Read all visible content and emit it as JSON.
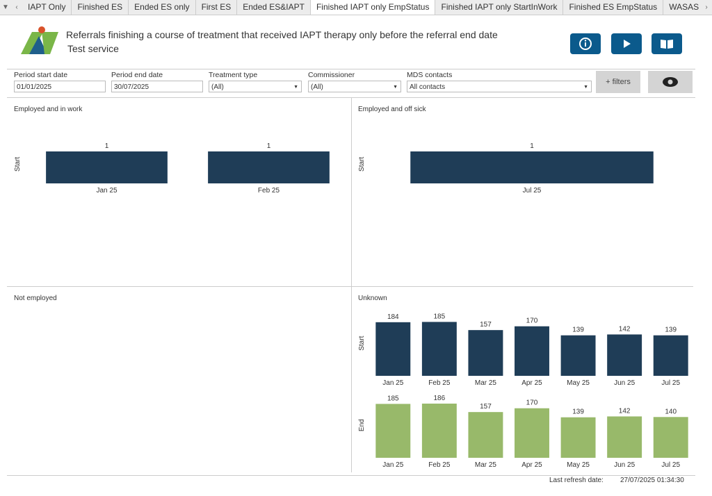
{
  "tabs": [
    "IAPT Only",
    "Finished ES",
    "Ended ES only",
    "First ES",
    "Ended ES&IAPT",
    "Finished IAPT only EmpStatus",
    "Finished IAPT only StartInWork",
    "Finished ES EmpStatus",
    "WASAS ES"
  ],
  "header": {
    "title": "Referrals finishing a course of treatment that received IAPT therapy only before the referral end date",
    "subtitle": "Test service"
  },
  "filters": [
    {
      "label": "Period start date",
      "value": "01/01/2025"
    },
    {
      "label": "Period end date",
      "value": "30/07/2025"
    },
    {
      "label": "Treatment type",
      "value": "(All)"
    },
    {
      "label": "Commissioner",
      "value": "(All)"
    },
    {
      "label": "MDS contacts",
      "value": "All contacts"
    }
  ],
  "filters_button": "+ filters",
  "panels": [
    {
      "title": "Employed and in work",
      "type": "bar",
      "rows": [
        {
          "name": "Start",
          "color": "#1f3d57",
          "categories": [
            "Jan 25",
            "Feb 25"
          ],
          "values": [
            1,
            1
          ]
        }
      ]
    },
    {
      "title": "Employed and off sick",
      "type": "bar",
      "rows": [
        {
          "name": "Start",
          "color": "#1f3d57",
          "categories": [
            "Jul 25"
          ],
          "values": [
            1
          ]
        }
      ]
    },
    {
      "title": "Not employed",
      "type": "bar",
      "rows": []
    },
    {
      "title": "Unknown",
      "type": "bar",
      "rows": [
        {
          "name": "Start",
          "color": "#1f3d57",
          "categories": [
            "Jan 25",
            "Feb 25",
            "Mar 25",
            "Apr 25",
            "May 25",
            "Jun 25",
            "Jul 25"
          ],
          "values": [
            184,
            185,
            157,
            170,
            139,
            142,
            139
          ]
        },
        {
          "name": "End",
          "color": "#98b96a",
          "categories": [
            "Jan 25",
            "Feb 25",
            "Mar 25",
            "Apr 25",
            "May 25",
            "Jun 25",
            "Jul 25"
          ],
          "values": [
            185,
            186,
            157,
            170,
            139,
            142,
            140
          ]
        }
      ]
    }
  ],
  "footer": {
    "label": "Last refresh date:",
    "value": "27/07/2025 01:34:30"
  }
}
